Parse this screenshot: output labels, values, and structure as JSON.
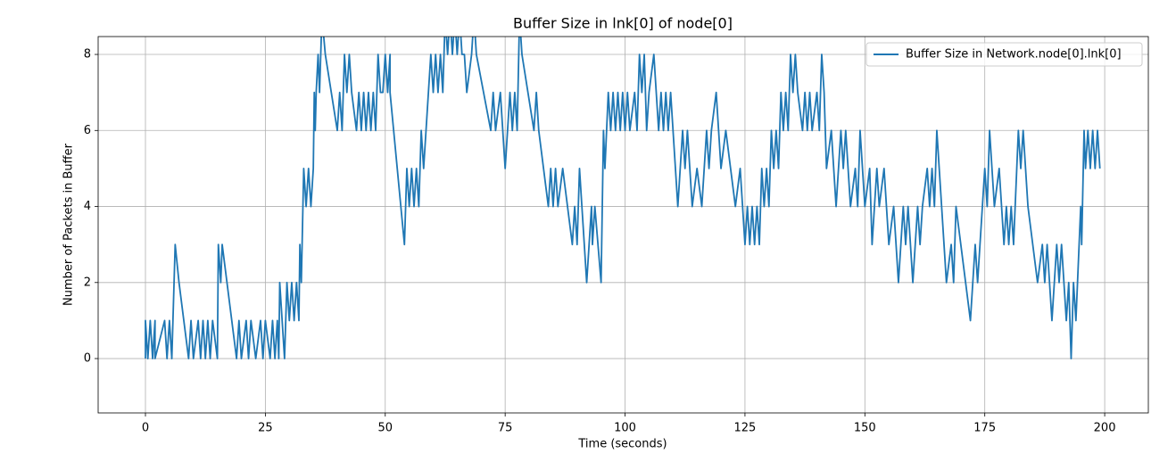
{
  "chart_data": {
    "type": "line",
    "title": "Buffer Size in lnk[0] of node[0]",
    "x_label": "Time (seconds)",
    "y_label": "Number of Packets in Buffer",
    "x": [
      0,
      0,
      0.5,
      1,
      1.5,
      2,
      2,
      4,
      4.5,
      5,
      5.5,
      6.2,
      7,
      9,
      9.5,
      10,
      11,
      11.5,
      12,
      12.5,
      13,
      13.5,
      14,
      15,
      15.2,
      15.7,
      16,
      17,
      19,
      19.5,
      20,
      21,
      21.5,
      22,
      23,
      24,
      24.5,
      25,
      26,
      26.5,
      27,
      27.5,
      27.8,
      28,
      29,
      29.5,
      30,
      30.5,
      31,
      31.5,
      32,
      32.2,
      32.5,
      33,
      33.5,
      34,
      34.5,
      35,
      35.2,
      35.4,
      35.6,
      36,
      36.3,
      36.8,
      37.5,
      40,
      40.5,
      41,
      41.5,
      42,
      42.5,
      43,
      44,
      44.5,
      45,
      45.5,
      46,
      46.5,
      47,
      47.5,
      48,
      48.5,
      49,
      49.5,
      50,
      50.5,
      51,
      51,
      54,
      54.5,
      55,
      55.5,
      56,
      56.5,
      57,
      57.5,
      58,
      59,
      59.5,
      60,
      60.5,
      61,
      61.5,
      62,
      62.5,
      63,
      63.5,
      64,
      64.5,
      65,
      65.5,
      66,
      66.5,
      67,
      68,
      68.5,
      69,
      72,
      72.5,
      73,
      74,
      74.5,
      75,
      76,
      76.5,
      77,
      77.5,
      78,
      78.5,
      81,
      81.5,
      82,
      83,
      84,
      84.5,
      85,
      85.5,
      86,
      87,
      88,
      89,
      89.5,
      90,
      90.5,
      91,
      92,
      93,
      93.2,
      93.7,
      95,
      95.5,
      95.8,
      96.5,
      97,
      97.5,
      98,
      98.5,
      99,
      99.5,
      100,
      100.5,
      101,
      102,
      102.5,
      103,
      103.5,
      104,
      104.5,
      105,
      106,
      107,
      107.5,
      108,
      108.5,
      109,
      109.5,
      110,
      111,
      112,
      112.5,
      113,
      114,
      115,
      116,
      117,
      117.5,
      118,
      119,
      120,
      121,
      122,
      123,
      124,
      125,
      125.5,
      126,
      126.5,
      127,
      127.5,
      128,
      128.5,
      129,
      129.5,
      130,
      130.5,
      131,
      131.5,
      132,
      132.5,
      133,
      133.5,
      134,
      134.5,
      135,
      135.5,
      136,
      137,
      137.5,
      138,
      138.5,
      139,
      140,
      140.5,
      141,
      141.5,
      142,
      143,
      144,
      145,
      145.5,
      146,
      147,
      148,
      148.5,
      149,
      150,
      151,
      151.5,
      152,
      152.5,
      153,
      154,
      155,
      156,
      157,
      158,
      158.5,
      159,
      160,
      161,
      161.5,
      162,
      163,
      163.5,
      164,
      164.5,
      165,
      165.5,
      166,
      167,
      168,
      168.5,
      169,
      170,
      171,
      172,
      173,
      173.5,
      174,
      175,
      175.5,
      176,
      176.5,
      177,
      178,
      179,
      179.5,
      180,
      180.5,
      181,
      182,
      182.5,
      183,
      184,
      186,
      187,
      187.5,
      188,
      189,
      190,
      190.5,
      191,
      192,
      192.5,
      193,
      193.5,
      194,
      195,
      195.2,
      195.7,
      196,
      196.5,
      197,
      197.5,
      198,
      198.5,
      199
    ],
    "xlim": [
      -9.86,
      209.1
    ],
    "ylim": [
      -1.43,
      8.47
    ],
    "xticks": [
      0,
      25,
      50,
      75,
      100,
      125,
      150,
      175,
      200
    ],
    "yticks": [
      0,
      2,
      4,
      6,
      8
    ],
    "grid": true,
    "legend": "upper right",
    "series": [
      {
        "name": "Buffer Size in Network.node[0].lnk[0]",
        "color": "#1f77b4",
        "values": [
          0,
          1,
          0,
          1,
          0,
          1,
          0,
          1,
          0,
          1,
          0,
          3,
          2,
          0,
          1,
          0,
          1,
          0,
          1,
          0,
          1,
          0,
          1,
          0,
          3,
          2,
          3,
          2,
          0,
          1,
          0,
          1,
          0,
          1,
          0,
          1,
          0,
          1,
          0,
          1,
          0,
          1,
          0,
          2,
          0,
          2,
          1,
          2,
          1,
          2,
          1,
          3,
          2,
          5,
          4,
          5,
          4,
          5,
          7,
          6,
          7,
          8,
          7,
          9,
          8,
          6,
          7,
          6,
          8,
          7,
          8,
          7,
          6,
          7,
          6,
          7,
          6,
          7,
          6,
          7,
          6,
          8,
          7,
          7,
          8,
          7,
          8,
          7,
          3,
          5,
          4,
          5,
          4,
          5,
          4,
          6,
          5,
          7,
          8,
          7,
          8,
          7,
          8,
          7,
          9,
          8,
          9,
          8,
          9,
          8,
          9,
          8,
          8,
          7,
          8,
          9,
          8,
          6,
          7,
          6,
          7,
          6,
          5,
          7,
          6,
          7,
          6,
          9,
          8,
          6,
          7,
          6,
          5,
          4,
          5,
          4,
          5,
          4,
          5,
          4,
          3,
          4,
          3,
          5,
          4,
          2,
          4,
          3,
          4,
          2,
          6,
          5,
          7,
          6,
          7,
          6,
          7,
          6,
          7,
          6,
          7,
          6,
          7,
          6,
          8,
          7,
          8,
          6,
          7,
          8,
          6,
          7,
          6,
          7,
          6,
          7,
          6,
          4,
          6,
          5,
          6,
          4,
          5,
          4,
          6,
          5,
          6,
          7,
          5,
          6,
          5,
          4,
          5,
          3,
          4,
          3,
          4,
          3,
          4,
          3,
          5,
          4,
          5,
          4,
          6,
          5,
          6,
          5,
          7,
          6,
          7,
          6,
          8,
          7,
          8,
          7,
          6,
          7,
          6,
          7,
          6,
          7,
          6,
          8,
          7,
          5,
          6,
          4,
          6,
          5,
          6,
          4,
          5,
          4,
          6,
          4,
          5,
          3,
          4,
          5,
          4,
          5,
          3,
          4,
          2,
          4,
          3,
          4,
          2,
          4,
          3,
          4,
          5,
          4,
          5,
          4,
          6,
          5,
          4,
          2,
          3,
          2,
          4,
          3,
          2,
          1,
          3,
          2,
          3,
          5,
          4,
          6,
          5,
          4,
          5,
          3,
          4,
          3,
          4,
          3,
          6,
          5,
          6,
          4,
          2,
          3,
          2,
          3,
          1,
          3,
          2,
          3,
          1,
          2,
          0,
          2,
          1,
          4,
          3,
          6,
          5,
          6,
          5,
          6,
          5,
          6,
          5
        ]
      }
    ]
  }
}
